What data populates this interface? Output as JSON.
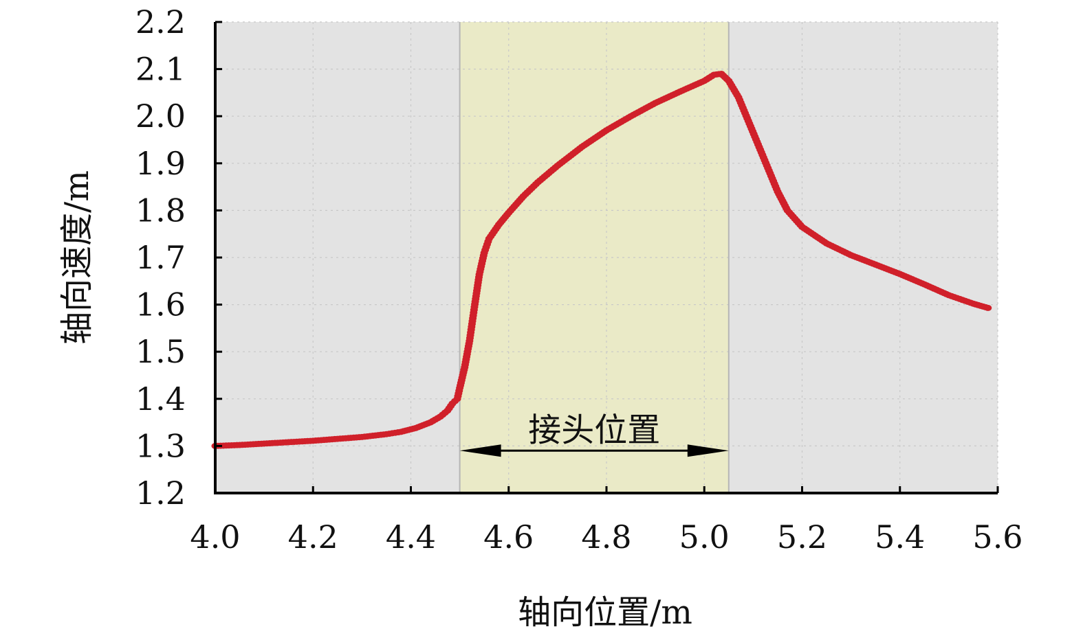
{
  "chart_data": {
    "type": "scatter",
    "xlabel": "轴向位置/m",
    "ylabel": "轴向速度/m",
    "xlim": [
      4.0,
      5.6
    ],
    "ylim": [
      1.2,
      2.2
    ],
    "xticks": [
      "4.0",
      "4.2",
      "4.4",
      "4.6",
      "4.8",
      "5.0",
      "5.2",
      "5.4",
      "5.6"
    ],
    "yticks": [
      "1.2",
      "1.3",
      "1.4",
      "1.5",
      "1.6",
      "1.7",
      "1.8",
      "1.9",
      "2.0",
      "2.1",
      "2.2"
    ],
    "grid": true,
    "background_color": "#e3e3e3",
    "highlight_region": {
      "x_start": 4.5,
      "x_end": 5.05,
      "color": "#eaeac7"
    },
    "annotation": {
      "text": "接头位置",
      "x_start": 4.5,
      "x_end": 5.05,
      "y": 1.29
    },
    "series": [
      {
        "color": "#d0202a",
        "points": [
          [
            4.0,
            1.3
          ],
          [
            4.05,
            1.302
          ],
          [
            4.1,
            1.305
          ],
          [
            4.15,
            1.308
          ],
          [
            4.2,
            1.311
          ],
          [
            4.25,
            1.315
          ],
          [
            4.3,
            1.319
          ],
          [
            4.35,
            1.325
          ],
          [
            4.38,
            1.33
          ],
          [
            4.41,
            1.338
          ],
          [
            4.44,
            1.35
          ],
          [
            4.46,
            1.362
          ],
          [
            4.475,
            1.375
          ],
          [
            4.485,
            1.39
          ],
          [
            4.495,
            1.4
          ],
          [
            4.5,
            1.423
          ],
          [
            4.51,
            1.467
          ],
          [
            4.52,
            1.523
          ],
          [
            4.53,
            1.595
          ],
          [
            4.54,
            1.664
          ],
          [
            4.55,
            1.71
          ],
          [
            4.56,
            1.74
          ],
          [
            4.58,
            1.77
          ],
          [
            4.6,
            1.795
          ],
          [
            4.63,
            1.83
          ],
          [
            4.66,
            1.86
          ],
          [
            4.7,
            1.895
          ],
          [
            4.75,
            1.935
          ],
          [
            4.8,
            1.97
          ],
          [
            4.85,
            2.0
          ],
          [
            4.9,
            2.028
          ],
          [
            4.95,
            2.052
          ],
          [
            5.0,
            2.075
          ],
          [
            5.02,
            2.088
          ],
          [
            5.035,
            2.09
          ],
          [
            5.05,
            2.075
          ],
          [
            5.07,
            2.04
          ],
          [
            5.09,
            1.99
          ],
          [
            5.11,
            1.94
          ],
          [
            5.13,
            1.89
          ],
          [
            5.15,
            1.84
          ],
          [
            5.17,
            1.8
          ],
          [
            5.2,
            1.765
          ],
          [
            5.25,
            1.73
          ],
          [
            5.3,
            1.705
          ],
          [
            5.35,
            1.685
          ],
          [
            5.4,
            1.665
          ],
          [
            5.45,
            1.643
          ],
          [
            5.5,
            1.62
          ],
          [
            5.55,
            1.602
          ],
          [
            5.58,
            1.593
          ]
        ]
      }
    ]
  }
}
